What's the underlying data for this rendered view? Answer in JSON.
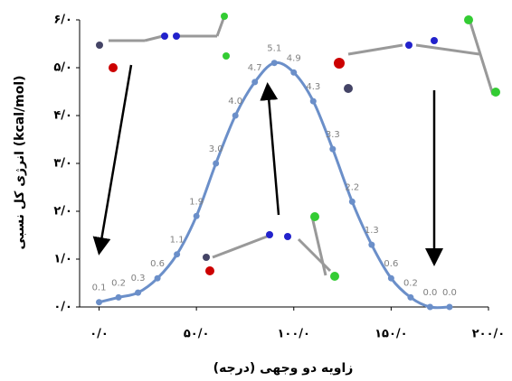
{
  "chart_data": {
    "type": "line",
    "x_label": "زاویه دو وجهی (درجه)",
    "y_label": "انرژی کل نسبی (kcal/mol)",
    "x": [
      0,
      10,
      20,
      30,
      40,
      50,
      60,
      70,
      80,
      90,
      100,
      110,
      120,
      130,
      140,
      150,
      160,
      170,
      180
    ],
    "values": [
      0.1,
      0.2,
      0.3,
      0.6,
      1.1,
      1.9,
      3.0,
      4.0,
      4.7,
      5.1,
      4.9,
      4.3,
      3.3,
      2.2,
      1.3,
      0.6,
      0.2,
      0.0,
      0.0
    ],
    "value_labels": [
      "0.1",
      "0.2",
      "0.3",
      "0.6",
      "1.1",
      "1.9",
      "3.0",
      "4.0",
      "4.7",
      "5.1",
      "4.9",
      "4.3",
      "3.3",
      "2.2",
      "1.3",
      "0.6",
      "0.2",
      "0.0",
      "0.0"
    ],
    "color": "#6b8fc9",
    "xlim": [
      -10,
      200
    ],
    "xticks": [
      {
        "value": 0,
        "label": "۰/۰"
      },
      {
        "value": 50,
        "label": "۵۰/۰"
      },
      {
        "value": 100,
        "label": "۱۰۰/۰"
      },
      {
        "value": 150,
        "label": "۱۵۰/۰"
      },
      {
        "value": 200,
        "label": "۲۰۰/۰"
      }
    ],
    "ylim": [
      0,
      6
    ],
    "yticks": [
      {
        "value": 0,
        "label": "۰/۰"
      },
      {
        "value": 1,
        "label": "۱/۰"
      },
      {
        "value": 2,
        "label": "۲/۰"
      },
      {
        "value": 3,
        "label": "۳/۰"
      },
      {
        "value": 4,
        "label": "۴/۰"
      },
      {
        "value": 5,
        "label": "۵/۰"
      },
      {
        "value": 6,
        "label": "۶/۰"
      }
    ]
  }
}
